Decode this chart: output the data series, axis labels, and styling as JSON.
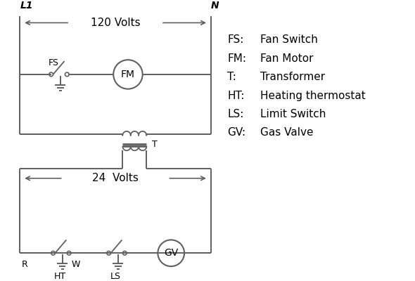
{
  "background_color": "#ffffff",
  "line_color": "#606060",
  "text_color": "#000000",
  "legend_items": [
    [
      "FS:",
      "Fan Switch"
    ],
    [
      "FM:",
      "Fan Motor"
    ],
    [
      "T:",
      "Transformer"
    ],
    [
      "HT:",
      "Heating thermostat"
    ],
    [
      "LS:",
      "Limit Switch"
    ],
    [
      "GV:",
      "Gas Valve"
    ]
  ],
  "L1_label": "L1",
  "N_label": "N",
  "volts120_label": "120 Volts",
  "volts24_label": "24  Volts",
  "T_label": "T",
  "R_label": "R",
  "W_label": "W",
  "HT_label": "HT",
  "LS_label": "LS",
  "FS_label": "FS",
  "FM_label": "FM",
  "GV_label": "GV"
}
